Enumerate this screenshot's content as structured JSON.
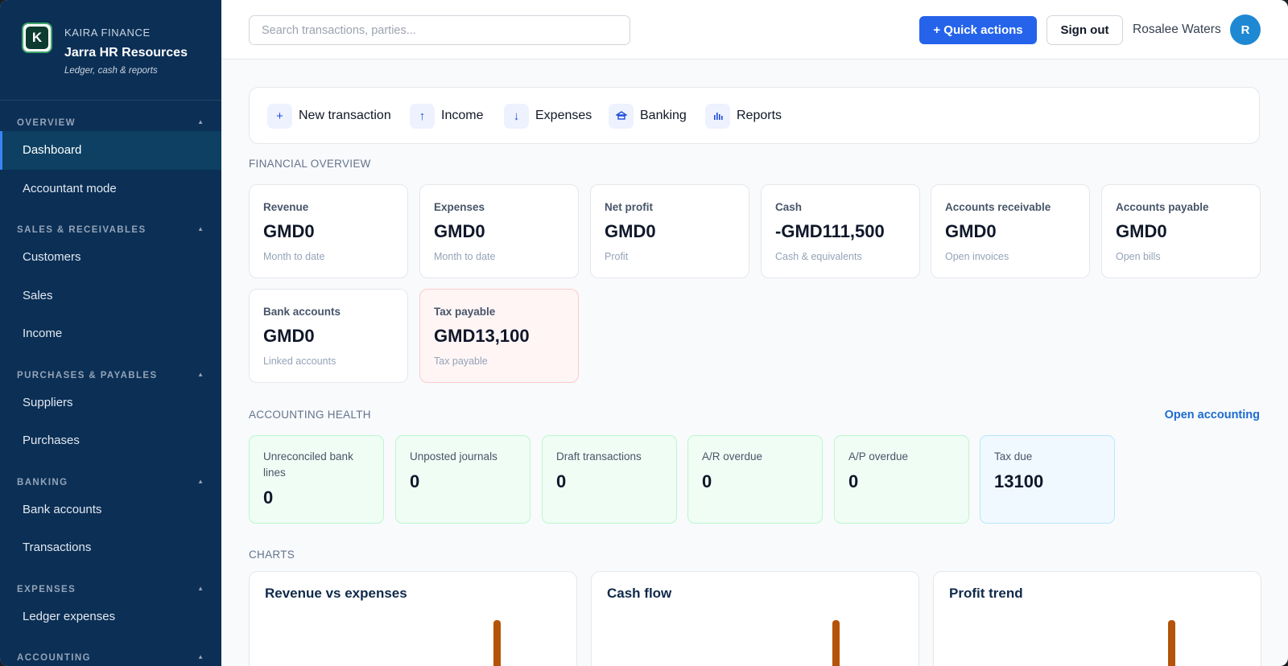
{
  "brand": {
    "org": "KAIRA FINANCE",
    "name": "Jarra HR Resources",
    "tagline": "Ledger, cash & reports",
    "logo_letter": "K"
  },
  "sidebar": {
    "sections": [
      {
        "title": "OVERVIEW",
        "items": [
          {
            "label": "Dashboard",
            "active": true
          },
          {
            "label": "Accountant mode"
          }
        ]
      },
      {
        "title": "SALES & RECEIVABLES",
        "items": [
          {
            "label": "Customers"
          },
          {
            "label": "Sales"
          },
          {
            "label": "Income"
          }
        ]
      },
      {
        "title": "PURCHASES & PAYABLES",
        "items": [
          {
            "label": "Suppliers"
          },
          {
            "label": "Purchases"
          }
        ]
      },
      {
        "title": "BANKING",
        "items": [
          {
            "label": "Bank accounts"
          },
          {
            "label": "Transactions"
          }
        ]
      },
      {
        "title": "EXPENSES",
        "items": [
          {
            "label": "Ledger expenses"
          }
        ]
      },
      {
        "title": "ACCOUNTING",
        "items": []
      }
    ]
  },
  "header": {
    "search_placeholder": "Search transactions, parties...",
    "quick_actions_label": "+ Quick actions",
    "sign_out_label": "Sign out",
    "user_name": "Rosalee Waters",
    "avatar_initial": "R"
  },
  "quick_bar": [
    {
      "label": "New transaction",
      "icon": "plus-icon"
    },
    {
      "label": "Income",
      "icon": "arrow-up-icon"
    },
    {
      "label": "Expenses",
      "icon": "arrow-down-icon"
    },
    {
      "label": "Banking",
      "icon": "bank-icon"
    },
    {
      "label": "Reports",
      "icon": "bar-chart-icon"
    }
  ],
  "financial_overview": {
    "title": "FINANCIAL OVERVIEW",
    "cards": [
      {
        "label": "Revenue",
        "value": "GMD0",
        "sub": "Month to date"
      },
      {
        "label": "Expenses",
        "value": "GMD0",
        "sub": "Month to date"
      },
      {
        "label": "Net profit",
        "value": "GMD0",
        "sub": "Profit"
      },
      {
        "label": "Cash",
        "value": "-GMD111,500",
        "sub": "Cash & equivalents"
      },
      {
        "label": "Accounts receivable",
        "value": "GMD0",
        "sub": "Open invoices"
      },
      {
        "label": "Accounts payable",
        "value": "GMD0",
        "sub": "Open bills"
      },
      {
        "label": "Bank accounts",
        "value": "GMD0",
        "sub": "Linked accounts"
      },
      {
        "label": "Tax payable",
        "value": "GMD13,100",
        "sub": "Tax payable",
        "highlight": true
      }
    ]
  },
  "accounting_health": {
    "title": "ACCOUNTING HEALTH",
    "link": "Open accounting",
    "cards": [
      {
        "label": "Unreconciled bank lines",
        "value": "0"
      },
      {
        "label": "Unposted journals",
        "value": "0"
      },
      {
        "label": "Draft transactions",
        "value": "0"
      },
      {
        "label": "A/R overdue",
        "value": "0"
      },
      {
        "label": "A/P overdue",
        "value": "0"
      },
      {
        "label": "Tax due",
        "value": "13100"
      }
    ]
  },
  "charts": {
    "title": "CHARTS",
    "panels": [
      {
        "title": "Revenue vs expenses"
      },
      {
        "title": "Cash flow"
      },
      {
        "title": "Profit trend"
      }
    ]
  },
  "colors": {
    "sidebar_bg": "#0b2f55",
    "accent": "#2563eb",
    "chart_bar": "#b45309"
  }
}
